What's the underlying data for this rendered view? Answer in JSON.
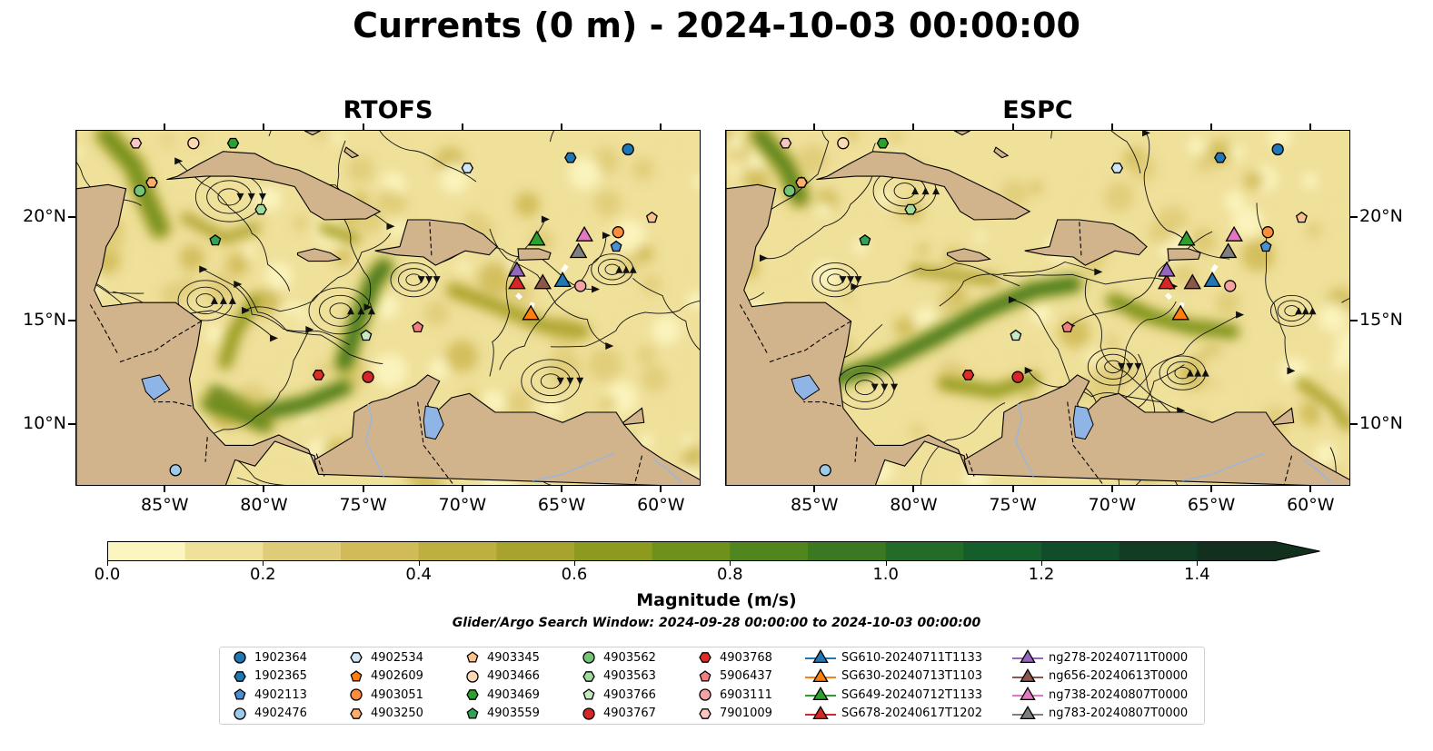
{
  "figure": {
    "title": "Currents (0 m) - 2024-10-03 00:00:00",
    "search_window": "Glider/Argo Search Window: 2024-09-28 00:00:00 to 2024-10-03 00:00:00"
  },
  "map": {
    "lon_range": [
      -89.5,
      -58.0
    ],
    "lat_range": [
      7.0,
      24.2
    ],
    "lon_ticks": [
      -85,
      -80,
      -75,
      -70,
      -65,
      -60
    ],
    "lon_tick_labels": [
      "85°W",
      "80°W",
      "75°W",
      "70°W",
      "65°W",
      "60°W"
    ],
    "lat_ticks": [
      10,
      15,
      20
    ],
    "lat_tick_labels": [
      "10°N",
      "15°N",
      "20°N"
    ],
    "land_color": "#d2b48c",
    "lake_color": "#8fb5e6"
  },
  "panels": [
    {
      "title": "RTOFS"
    },
    {
      "title": "ESPC"
    }
  ],
  "colorbar": {
    "label": "Magnitude (m/s)",
    "min": 0.0,
    "max": 1.5,
    "step": 0.1,
    "extend": "max",
    "ticks": [
      0.0,
      0.2,
      0.4,
      0.6,
      0.8,
      1.0,
      1.2,
      1.4
    ],
    "tick_labels": [
      "0.0",
      "0.2",
      "0.4",
      "0.6",
      "0.8",
      "1.0",
      "1.2",
      "1.4"
    ],
    "colors": [
      "#fcf5c0",
      "#efe09a",
      "#e0cc78",
      "#d0bb58",
      "#bfae40",
      "#a8a32c",
      "#8c9b1e",
      "#6e911c",
      "#51851e",
      "#3a7822",
      "#246b27",
      "#155d2b",
      "#124d29",
      "#123d25",
      "#13301f"
    ]
  },
  "legend": {
    "items": [
      {
        "label": "1902364",
        "marker": "circle",
        "color": "#1f77b4"
      },
      {
        "label": "1902365",
        "marker": "hexagon",
        "color": "#1f77b4"
      },
      {
        "label": "4902113",
        "marker": "pentagon",
        "color": "#4a8fd0"
      },
      {
        "label": "4902476",
        "marker": "circle",
        "color": "#9ecae9"
      },
      {
        "label": "4902534",
        "marker": "hexagon",
        "color": "#d0e6f7"
      },
      {
        "label": "4902609",
        "marker": "pentagon",
        "color": "#ff7f0e"
      },
      {
        "label": "4903051",
        "marker": "circle",
        "color": "#fd8d3c"
      },
      {
        "label": "4903250",
        "marker": "hexagon",
        "color": "#fdae6b"
      },
      {
        "label": "4903345",
        "marker": "pentagon",
        "color": "#fdc18a"
      },
      {
        "label": "4903466",
        "marker": "circle",
        "color": "#fdd9b5"
      },
      {
        "label": "4903469",
        "marker": "hexagon",
        "color": "#2ca02c"
      },
      {
        "label": "4903559",
        "marker": "pentagon",
        "color": "#31a354"
      },
      {
        "label": "4903562",
        "marker": "circle",
        "color": "#74c476"
      },
      {
        "label": "4903563",
        "marker": "hexagon",
        "color": "#a1d99b"
      },
      {
        "label": "4903766",
        "marker": "pentagon",
        "color": "#c7e9c0"
      },
      {
        "label": "4903767",
        "marker": "circle",
        "color": "#d62728"
      },
      {
        "label": "4903768",
        "marker": "hexagon",
        "color": "#de2d26"
      },
      {
        "label": "5906437",
        "marker": "pentagon",
        "color": "#f08080"
      },
      {
        "label": "6903111",
        "marker": "circle",
        "color": "#f4a3a3"
      },
      {
        "label": "7901009",
        "marker": "hexagon",
        "color": "#fcc5c0"
      },
      {
        "label": "SG610-20240711T1133",
        "marker": "triangle",
        "color": "#1f77b4"
      },
      {
        "label": "SG630-20240713T1103",
        "marker": "triangle",
        "color": "#ff7f0e"
      },
      {
        "label": "SG649-20240712T1133",
        "marker": "triangle",
        "color": "#2ca02c"
      },
      {
        "label": "SG678-20240617T1202",
        "marker": "triangle",
        "color": "#d62728"
      },
      {
        "label": "ng278-20240711T0000",
        "marker": "triangle",
        "color": "#9467bd"
      },
      {
        "label": "ng656-20240613T0000",
        "marker": "triangle",
        "color": "#8c564b"
      },
      {
        "label": "ng738-20240807T0000",
        "marker": "triangle",
        "color": "#e377c2"
      },
      {
        "label": "ng783-20240807T0000",
        "marker": "triangle",
        "color": "#7f7f7f"
      }
    ]
  },
  "floats": [
    {
      "id": "1902364",
      "lon": -61.7,
      "lat": 23.3
    },
    {
      "id": "1902365",
      "lon": -64.6,
      "lat": 22.9
    },
    {
      "id": "4902113",
      "lon": -62.3,
      "lat": 18.6
    },
    {
      "id": "4902476",
      "lon": -84.5,
      "lat": 7.8
    },
    {
      "id": "4902534",
      "lon": -69.8,
      "lat": 22.4
    },
    {
      "id": "4902609",
      "lon": -85.7,
      "lat": 21.7
    },
    {
      "id": "4903051",
      "lon": -62.2,
      "lat": 19.3
    },
    {
      "id": "4903250",
      "lon": -85.7,
      "lat": 21.7
    },
    {
      "id": "4903345",
      "lon": -60.5,
      "lat": 20.0
    },
    {
      "id": "4903466",
      "lon": -83.6,
      "lat": 23.6
    },
    {
      "id": "4903469",
      "lon": -81.6,
      "lat": 23.6
    },
    {
      "id": "4903559",
      "lon": -82.5,
      "lat": 18.9
    },
    {
      "id": "4903562",
      "lon": -86.3,
      "lat": 21.3
    },
    {
      "id": "4903563",
      "lon": -80.2,
      "lat": 20.4
    },
    {
      "id": "4903766",
      "lon": -74.9,
      "lat": 14.3
    },
    {
      "id": "4903767",
      "lon": -74.8,
      "lat": 12.3
    },
    {
      "id": "4903768",
      "lon": -77.3,
      "lat": 12.4
    },
    {
      "id": "5906437",
      "lon": -72.3,
      "lat": 14.7
    },
    {
      "id": "6903111",
      "lon": -64.1,
      "lat": 16.7
    },
    {
      "id": "7901009",
      "lon": -86.5,
      "lat": 23.6
    }
  ],
  "gliders": [
    {
      "id": "SG610-20240711T1133",
      "lon": -65.0,
      "lat": 16.9
    },
    {
      "id": "SG630-20240713T1103",
      "lon": -66.6,
      "lat": 15.3
    },
    {
      "id": "SG649-20240712T1133",
      "lon": -66.3,
      "lat": 18.9
    },
    {
      "id": "SG678-20240617T1202",
      "lon": -67.3,
      "lat": 16.8
    },
    {
      "id": "ng278-20240711T0000",
      "lon": -67.3,
      "lat": 17.4
    },
    {
      "id": "ng656-20240613T0000",
      "lon": -66.0,
      "lat": 16.8
    },
    {
      "id": "ng738-20240807T0000",
      "lon": -63.9,
      "lat": 19.1
    },
    {
      "id": "ng783-20240807T0000",
      "lon": -64.2,
      "lat": 18.3
    }
  ]
}
